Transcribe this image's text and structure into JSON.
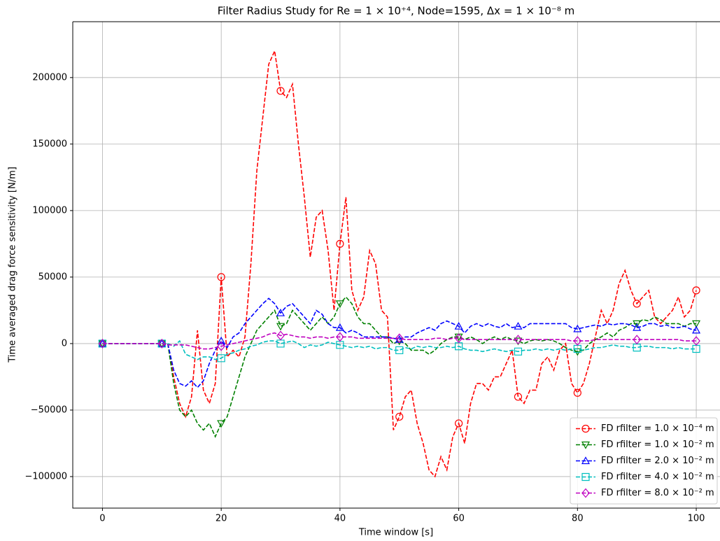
{
  "chart_data": {
    "type": "line",
    "title": "Filter Radius Study for Re = 1 × 10⁺⁴, Node=1595, Δx = 1 × 10⁻⁸ m",
    "x_label": "Time window [s]",
    "y_label": "Time averaged drag force sensitivity [N/m]",
    "xlim": [
      -5,
      104
    ],
    "ylim": [
      -123700,
      242000
    ],
    "xticks": [
      0,
      20,
      40,
      60,
      80,
      100
    ],
    "yticks": [
      {
        "value": -100000,
        "label": "−100000"
      },
      {
        "value": -50000,
        "label": "−50000"
      },
      0,
      50000,
      100000,
      150000,
      200000
    ],
    "grid": true,
    "legend": "lower right",
    "markevery": 10,
    "x": [
      0,
      1,
      2,
      3,
      4,
      5,
      6,
      7,
      8,
      9,
      10,
      11,
      12,
      13,
      14,
      15,
      16,
      17,
      18,
      19,
      20,
      21,
      22,
      23,
      24,
      25,
      26,
      27,
      28,
      29,
      30,
      31,
      32,
      33,
      34,
      35,
      36,
      37,
      38,
      39,
      40,
      41,
      42,
      43,
      44,
      45,
      46,
      47,
      48,
      49,
      50,
      51,
      52,
      53,
      54,
      55,
      56,
      57,
      58,
      59,
      60,
      61,
      62,
      63,
      64,
      65,
      66,
      67,
      68,
      69,
      70,
      71,
      72,
      73,
      74,
      75,
      76,
      77,
      78,
      79,
      80,
      81,
      82,
      83,
      84,
      85,
      86,
      87,
      88,
      89,
      90,
      91,
      92,
      93,
      94,
      95,
      96,
      97,
      98,
      99,
      100
    ],
    "series": [
      {
        "name": "FD rfilter = 1.0 × 10⁻⁴ m",
        "color": "#ff0000",
        "marker": "o",
        "values": [
          0,
          0,
          0,
          0,
          0,
          0,
          0,
          0,
          0,
          0,
          0,
          0,
          -25000,
          -45000,
          -55000,
          -40000,
          10000,
          -35000,
          -45000,
          -30000,
          50000,
          -10000,
          -5000,
          -10000,
          5000,
          60000,
          130000,
          170000,
          210000,
          220000,
          190000,
          185000,
          195000,
          150000,
          110000,
          65000,
          95000,
          100000,
          70000,
          25000,
          75000,
          110000,
          40000,
          25000,
          35000,
          70000,
          60000,
          25000,
          20000,
          -65000,
          -55000,
          -40000,
          -35000,
          -60000,
          -75000,
          -95000,
          -100000,
          -85000,
          -95000,
          -70000,
          -60000,
          -75000,
          -45000,
          -30000,
          -30000,
          -35000,
          -25000,
          -25000,
          -15000,
          -5000,
          -40000,
          -45000,
          -35000,
          -35000,
          -15000,
          -10000,
          -20000,
          -5000,
          0,
          -30000,
          -37000,
          -30000,
          -15000,
          5000,
          25000,
          15000,
          25000,
          45000,
          55000,
          40000,
          30000,
          35000,
          40000,
          20000,
          15000,
          20000,
          25000,
          35000,
          20000,
          25000,
          40000
        ]
      },
      {
        "name": "FD rfilter = 1.0 × 10⁻² m",
        "color": "#008000",
        "marker": "v",
        "values": [
          0,
          0,
          0,
          0,
          0,
          0,
          0,
          0,
          0,
          0,
          0,
          0,
          -30000,
          -50000,
          -55000,
          -50000,
          -60000,
          -65000,
          -60000,
          -70000,
          -60000,
          -55000,
          -40000,
          -25000,
          -10000,
          0,
          10000,
          15000,
          20000,
          25000,
          13000,
          15000,
          25000,
          20000,
          15000,
          10000,
          15000,
          20000,
          15000,
          20000,
          30000,
          35000,
          30000,
          20000,
          15000,
          15000,
          10000,
          5000,
          5000,
          0,
          2000,
          0,
          -5000,
          -5000,
          -5000,
          -8000,
          -5000,
          0,
          3000,
          5000,
          5000,
          3000,
          5000,
          3000,
          0,
          3000,
          5000,
          3000,
          5000,
          3000,
          2000,
          0,
          2000,
          3000,
          2000,
          3000,
          2000,
          0,
          -3000,
          -5000,
          -6000,
          -5000,
          0,
          3000,
          5000,
          8000,
          5000,
          10000,
          12000,
          15000,
          15000,
          18000,
          17000,
          20000,
          18000,
          15000,
          15000,
          15000,
          13000,
          15000,
          15000
        ]
      },
      {
        "name": "FD rfilter = 2.0 × 10⁻² m",
        "color": "#0000ff",
        "marker": "^",
        "values": [
          0,
          0,
          0,
          0,
          0,
          0,
          0,
          0,
          0,
          0,
          0,
          0,
          -20000,
          -30000,
          -32000,
          -28000,
          -33000,
          -28000,
          -15000,
          -5000,
          2000,
          -3000,
          5000,
          8000,
          15000,
          20000,
          25000,
          30000,
          34000,
          30000,
          23000,
          28000,
          30000,
          25000,
          20000,
          15000,
          25000,
          22000,
          15000,
          12000,
          12000,
          8000,
          10000,
          8000,
          5000,
          5000,
          5000,
          5000,
          5000,
          4000,
          3000,
          5000,
          5000,
          8000,
          10000,
          12000,
          10000,
          15000,
          17000,
          15000,
          13000,
          8000,
          13000,
          15000,
          13000,
          15000,
          13000,
          12000,
          15000,
          12000,
          13000,
          12000,
          15000,
          15000,
          15000,
          15000,
          15000,
          15000,
          15000,
          12000,
          11000,
          12000,
          13000,
          14000,
          13000,
          15000,
          14000,
          15000,
          15000,
          14000,
          12000,
          13000,
          15000,
          15000,
          13000,
          14000,
          12000,
          12000,
          13000,
          11000,
          10000
        ]
      },
      {
        "name": "FD rfilter = 4.0 × 10⁻² m",
        "color": "#00bfbf",
        "marker": "s",
        "values": [
          0,
          0,
          0,
          0,
          0,
          0,
          0,
          0,
          0,
          0,
          0,
          0,
          -2000,
          2000,
          -8000,
          -10000,
          -12000,
          -10000,
          -10000,
          -12000,
          -11000,
          -8000,
          -7000,
          -5000,
          -4000,
          -2000,
          -1000,
          1000,
          2000,
          2000,
          0,
          1000,
          2000,
          0,
          -3000,
          -1000,
          -2000,
          -1000,
          1000,
          0,
          -1000,
          -2000,
          -3000,
          -2000,
          -3000,
          -2000,
          -4000,
          -3000,
          -3000,
          -5000,
          -5000,
          -3000,
          -4000,
          -2000,
          -3000,
          -2000,
          -3000,
          -3000,
          -2000,
          -3000,
          -2000,
          -4000,
          -5000,
          -5000,
          -6000,
          -5000,
          -4000,
          -5000,
          -6000,
          -5000,
          -6000,
          -5000,
          -5000,
          -4000,
          -5000,
          -4000,
          -5000,
          -4000,
          -5000,
          -4000,
          -4000,
          -5000,
          -4000,
          -3000,
          -3000,
          -2000,
          -1000,
          -2000,
          -2000,
          -3000,
          -3000,
          -2000,
          -2000,
          -3000,
          -3000,
          -3000,
          -4000,
          -3000,
          -4000,
          -4000,
          -4000
        ]
      },
      {
        "name": "FD rfilter = 8.0 × 10⁻² m",
        "color": "#bf00bf",
        "marker": "D",
        "values": [
          0,
          0,
          0,
          0,
          0,
          0,
          0,
          0,
          0,
          0,
          0,
          -1000,
          -1000,
          -1000,
          -1000,
          -2000,
          -3000,
          -4000,
          -4000,
          -3000,
          -2000,
          -1000,
          0,
          1000,
          2000,
          3000,
          4000,
          5000,
          7000,
          8000,
          6000,
          7000,
          6000,
          5000,
          5000,
          4000,
          5000,
          5000,
          4000,
          5000,
          5000,
          5000,
          5000,
          4000,
          4000,
          4000,
          4000,
          4000,
          4000,
          4000,
          4000,
          3000,
          3000,
          3000,
          3000,
          3000,
          4000,
          4000,
          3000,
          4000,
          4000,
          3000,
          3000,
          3000,
          3000,
          3000,
          3000,
          3000,
          3000,
          3000,
          3000,
          3000,
          3000,
          3000,
          3000,
          3000,
          3000,
          3000,
          3000,
          2000,
          2000,
          2000,
          2000,
          3000,
          3000,
          3000,
          3000,
          3000,
          3000,
          3000,
          3000,
          3000,
          3000,
          3000,
          3000,
          3000,
          3000,
          3000,
          2000,
          2000,
          2000
        ]
      }
    ]
  }
}
